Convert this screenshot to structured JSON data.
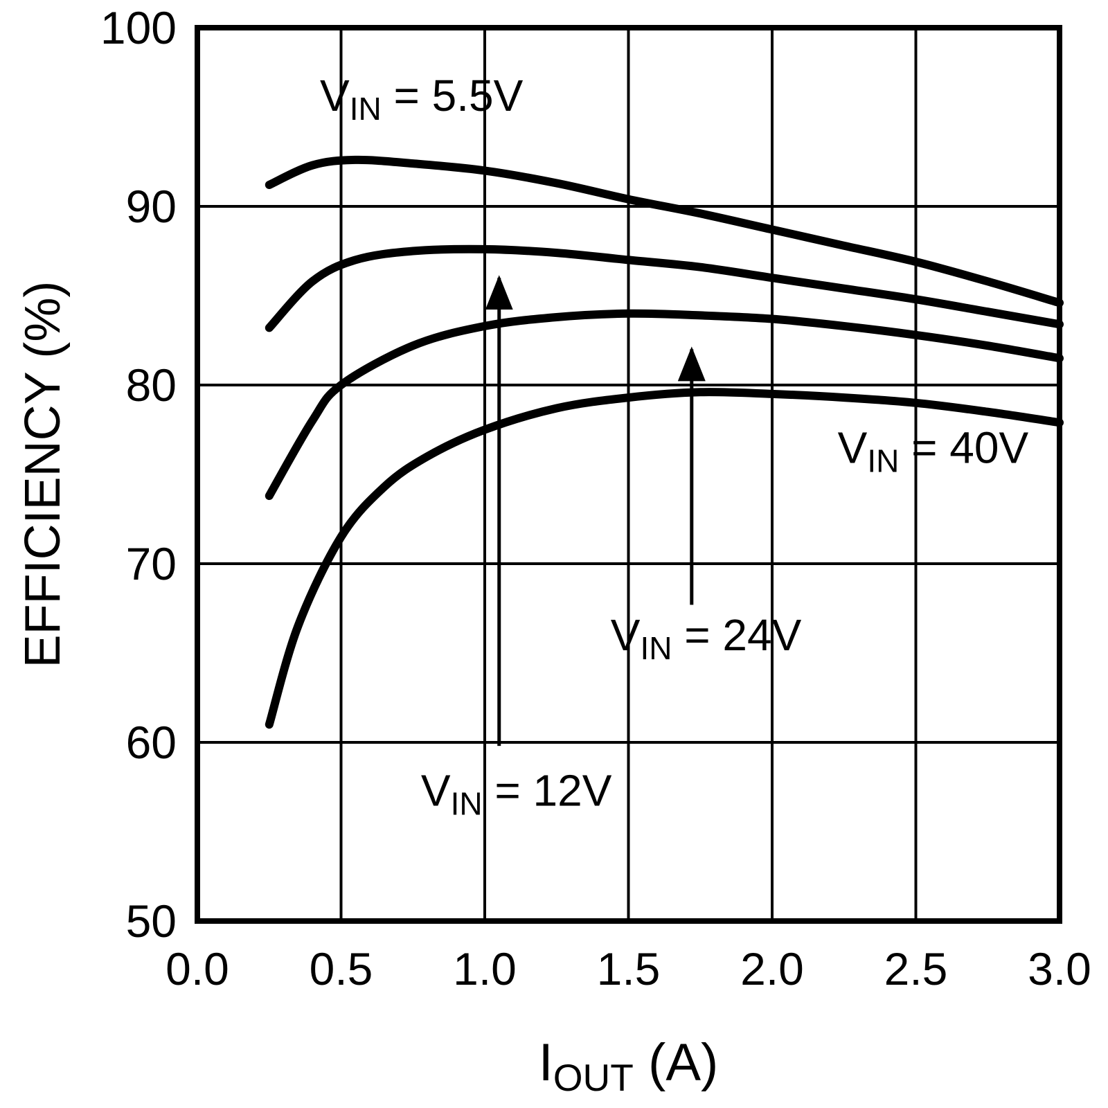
{
  "chart_data": {
    "type": "line",
    "title": "",
    "xlabel": {
      "pre": "I",
      "sub": "OUT",
      "post": " (A)"
    },
    "ylabel": "EFFICIENCY (%)",
    "xlim": [
      0.0,
      3.0
    ],
    "ylim": [
      50,
      100
    ],
    "xticks": [
      0,
      0.5,
      1,
      1.5,
      2,
      2.5,
      3
    ],
    "xtick_labels": [
      "0.0",
      "0.5",
      "1.0",
      "1.5",
      "2.0",
      "2.5",
      "3.0"
    ],
    "yticks": [
      50,
      60,
      70,
      80,
      90,
      100
    ],
    "ytick_labels": [
      "50",
      "60",
      "70",
      "80",
      "90",
      "100"
    ],
    "grid": true,
    "legend": "inline-annotations",
    "line_color": "#000000",
    "axis_color": "#000000",
    "background_color": "#ffffff",
    "series": [
      {
        "id": "vin-5p5v",
        "name": "VIN = 5.5V",
        "points": [
          [
            0.25,
            91.2
          ],
          [
            0.4,
            92.3
          ],
          [
            0.55,
            92.6
          ],
          [
            0.75,
            92.4
          ],
          [
            1.0,
            92.0
          ],
          [
            1.25,
            91.3
          ],
          [
            1.5,
            90.4
          ],
          [
            1.75,
            89.6
          ],
          [
            2.0,
            88.7
          ],
          [
            2.25,
            87.8
          ],
          [
            2.5,
            86.9
          ],
          [
            2.75,
            85.8
          ],
          [
            3.0,
            84.6
          ]
        ]
      },
      {
        "id": "vin-12v",
        "name": "VIN = 12V",
        "points": [
          [
            0.25,
            83.2
          ],
          [
            0.4,
            85.8
          ],
          [
            0.55,
            87.0
          ],
          [
            0.75,
            87.5
          ],
          [
            1.0,
            87.6
          ],
          [
            1.25,
            87.4
          ],
          [
            1.5,
            87.0
          ],
          [
            1.75,
            86.6
          ],
          [
            2.0,
            86.0
          ],
          [
            2.25,
            85.4
          ],
          [
            2.5,
            84.8
          ],
          [
            2.75,
            84.1
          ],
          [
            3.0,
            83.4
          ]
        ]
      },
      {
        "id": "vin-24v",
        "name": "VIN = 24V",
        "points": [
          [
            0.25,
            73.8
          ],
          [
            0.4,
            78.0
          ],
          [
            0.5,
            80.0
          ],
          [
            0.75,
            82.2
          ],
          [
            1.0,
            83.3
          ],
          [
            1.25,
            83.8
          ],
          [
            1.5,
            84.0
          ],
          [
            1.75,
            83.9
          ],
          [
            2.0,
            83.7
          ],
          [
            2.25,
            83.3
          ],
          [
            2.5,
            82.8
          ],
          [
            2.75,
            82.2
          ],
          [
            3.0,
            81.5
          ]
        ]
      },
      {
        "id": "vin-40v",
        "name": "VIN = 40V",
        "points": [
          [
            0.25,
            61.0
          ],
          [
            0.35,
            66.5
          ],
          [
            0.5,
            71.5
          ],
          [
            0.65,
            74.3
          ],
          [
            0.8,
            76.0
          ],
          [
            1.0,
            77.5
          ],
          [
            1.25,
            78.7
          ],
          [
            1.5,
            79.3
          ],
          [
            1.75,
            79.6
          ],
          [
            2.0,
            79.5
          ],
          [
            2.25,
            79.3
          ],
          [
            2.5,
            79.0
          ],
          [
            2.75,
            78.5
          ],
          [
            3.0,
            77.9
          ]
        ]
      }
    ],
    "annotations": [
      {
        "name": "vin-5p5v-label",
        "pre": "V",
        "sub": "IN",
        "post": " = 5.5V",
        "x": 0.78,
        "y": 96.2
      },
      {
        "name": "vin-40v-label",
        "pre": "V",
        "sub": "IN",
        "post": " = 40V",
        "x": 2.56,
        "y": 76.5
      },
      {
        "name": "vin-24v-label",
        "pre": "V",
        "sub": "IN",
        "post": " = 24V",
        "x": 1.77,
        "y": 66.0
      },
      {
        "name": "vin-12v-label",
        "pre": "V",
        "sub": "IN",
        "post": " = 12V",
        "x": 1.11,
        "y": 57.3
      }
    ],
    "arrows": [
      {
        "name": "vin-12v-arrow",
        "x": 1.05,
        "y_from": 59.8,
        "y_to": 86.0
      },
      {
        "name": "vin-24v-arrow",
        "x": 1.72,
        "y_from": 67.7,
        "y_to": 82.0
      }
    ]
  }
}
